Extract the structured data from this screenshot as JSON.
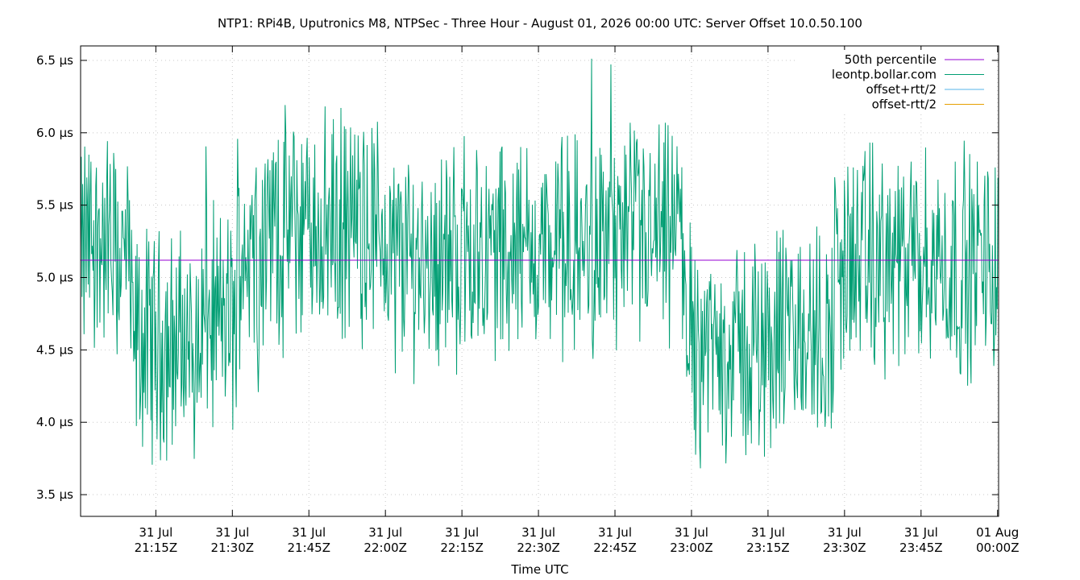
{
  "chart_data": {
    "type": "line",
    "title": "NTP1: RPi4B, Uputronics M8, NTPSec - Three Hour - August 01, 2026 00:00 UTC: Server Offset 10.0.50.100",
    "xlabel": "Time UTC",
    "ylabel": "",
    "x_range": [
      "31 Jul 21:00:15Z",
      "01 Aug 00:00:10Z"
    ],
    "ylim": [
      3.35,
      6.6
    ],
    "y_unit": "µs",
    "y_ticks": [
      {
        "value": 3.5,
        "label": "3.5 µs"
      },
      {
        "value": 4.0,
        "label": "4.0 µs"
      },
      {
        "value": 4.5,
        "label": "4.5 µs"
      },
      {
        "value": 5.0,
        "label": "5.0 µs"
      },
      {
        "value": 5.5,
        "label": "5.5 µs"
      },
      {
        "value": 6.0,
        "label": "6.0 µs"
      },
      {
        "value": 6.5,
        "label": "6.5 µs"
      }
    ],
    "x_ticks": [
      {
        "minutes": 75,
        "line1": "31 Jul",
        "line2": "21:15Z"
      },
      {
        "minutes": 90,
        "line1": "31 Jul",
        "line2": "21:30Z"
      },
      {
        "minutes": 105,
        "line1": "31 Jul",
        "line2": "21:45Z"
      },
      {
        "minutes": 120,
        "line1": "31 Jul",
        "line2": "22:00Z"
      },
      {
        "minutes": 135,
        "line1": "31 Jul",
        "line2": "22:15Z"
      },
      {
        "minutes": 150,
        "line1": "31 Jul",
        "line2": "22:30Z"
      },
      {
        "minutes": 165,
        "line1": "31 Jul",
        "line2": "22:45Z"
      },
      {
        "minutes": 180,
        "line1": "31 Jul",
        "line2": "23:00Z"
      },
      {
        "minutes": 195,
        "line1": "31 Jul",
        "line2": "23:15Z"
      },
      {
        "minutes": 210,
        "line1": "31 Jul",
        "line2": "23:30Z"
      },
      {
        "minutes": 225,
        "line1": "31 Jul",
        "line2": "23:45Z"
      },
      {
        "minutes": 240,
        "line1": "01 Aug",
        "line2": "00:00Z"
      }
    ],
    "grid": true,
    "legend_position": "top-right",
    "series": [
      {
        "name": "50th percentile",
        "color": "#9400d3",
        "values": [
          5.12,
          5.12
        ]
      },
      {
        "name": "leontp.bollar.com",
        "color": "#009e73",
        "segments": [
          {
            "from": 61,
            "to": 66,
            "level": 5.25
          },
          {
            "from": 66,
            "to": 70,
            "level": 5.15
          },
          {
            "from": 70,
            "to": 84,
            "level": 4.55
          },
          {
            "from": 84,
            "to": 91,
            "level": 4.7
          },
          {
            "from": 91,
            "to": 97,
            "level": 5.25
          },
          {
            "from": 97,
            "to": 120,
            "level": 5.35
          },
          {
            "from": 120,
            "to": 135,
            "level": 5.15
          },
          {
            "from": 135,
            "to": 160,
            "level": 5.2
          },
          {
            "from": 160,
            "to": 179,
            "level": 5.25
          },
          {
            "from": 179,
            "to": 195,
            "level": 4.5
          },
          {
            "from": 195,
            "to": 208,
            "level": 4.6
          },
          {
            "from": 208,
            "to": 240.5,
            "level": 5.1
          }
        ]
      },
      {
        "name": "offset+rtt/2",
        "color": "#56b4e9"
      },
      {
        "name": "offset-rtt/2",
        "color": "#e69f00"
      }
    ]
  }
}
